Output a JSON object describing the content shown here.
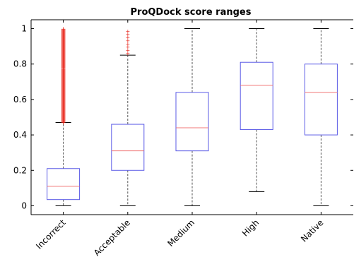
{
  "chart_data": {
    "type": "boxplot",
    "title": "ProQDock score ranges",
    "xlabel": "",
    "ylabel": "",
    "ylim": [
      -0.05,
      1.05
    ],
    "yticks": [
      0,
      0.2,
      0.4,
      0.6,
      0.8,
      1
    ],
    "ytick_labels": [
      "0",
      "0.2",
      "0.4",
      "0.6",
      "0.8",
      "1"
    ],
    "grid": false,
    "categories": [
      "Incorrect",
      "Acceptable",
      "Medium",
      "High",
      "Native"
    ],
    "boxes": [
      {
        "whisker_low": 0.0,
        "q1": 0.035,
        "median": 0.11,
        "q3": 0.21,
        "whisker_high": 0.47,
        "outliers_from": 0.47,
        "outliers_to": 1.0,
        "outlier_density": "dense"
      },
      {
        "whisker_low": 0.0,
        "q1": 0.2,
        "median": 0.31,
        "q3": 0.46,
        "whisker_high": 0.85,
        "outliers_from": 0.86,
        "outliers_to": 1.0,
        "outlier_density": "sparse"
      },
      {
        "whisker_low": 0.0,
        "q1": 0.31,
        "median": 0.44,
        "q3": 0.64,
        "whisker_high": 1.0
      },
      {
        "whisker_low": 0.08,
        "q1": 0.43,
        "median": 0.68,
        "q3": 0.81,
        "whisker_high": 1.0
      },
      {
        "whisker_low": 0.0,
        "q1": 0.4,
        "median": 0.64,
        "q3": 0.8,
        "whisker_high": 1.0
      }
    ],
    "colors": {
      "box": "#5a5ae6",
      "median": "#f07878",
      "whisker": "#555555",
      "outlier": "#e8261c",
      "axis": "#000000"
    }
  }
}
